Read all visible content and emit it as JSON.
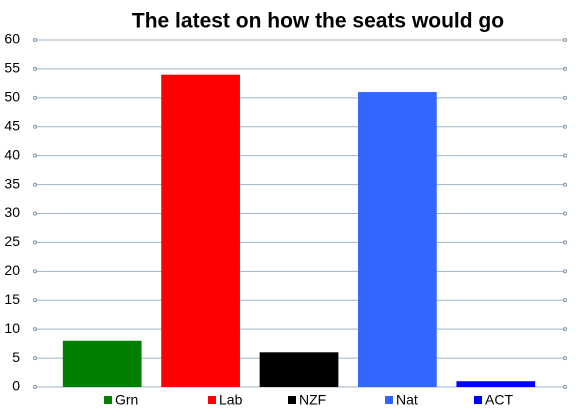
{
  "chart_data": {
    "type": "bar",
    "title": "The latest on how the seats would go",
    "categories": [
      "Grn",
      "Lab",
      "NZF",
      "Nat",
      "ACT"
    ],
    "values": [
      8,
      54,
      6,
      51,
      1
    ],
    "colors": [
      "#008000",
      "#ff0000",
      "#000000",
      "#3366ff",
      "#0000ff"
    ],
    "ylim": [
      0,
      60
    ],
    "yticks": [
      0,
      5,
      10,
      15,
      20,
      25,
      30,
      35,
      40,
      45,
      50,
      55,
      60
    ],
    "grid": true,
    "legend": "bottom"
  }
}
